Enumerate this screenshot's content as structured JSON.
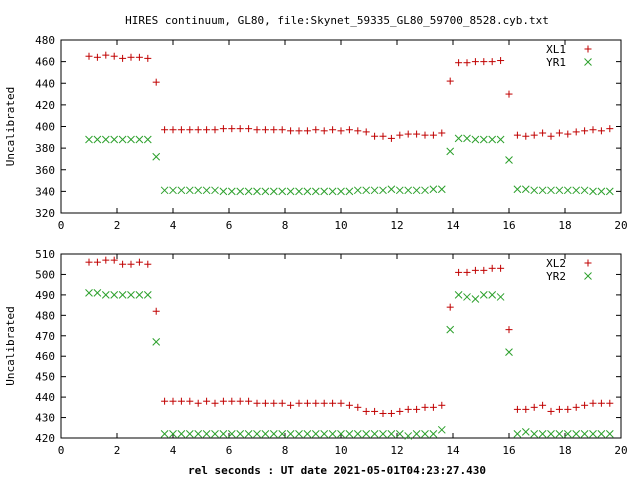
{
  "title": "HIRES continuum, GL80, file:Skynet_59335_GL80_59700_8528.cyb.txt",
  "xlabel": "rel seconds : UT date 2021-05-01T04:23:27.430",
  "colors": {
    "plus": "#c00000",
    "cross": "#2ca02c",
    "axis": "#000000"
  },
  "chart_data": [
    {
      "type": "scatter",
      "ylabel": "Uncalibrated",
      "xlim": [
        0,
        20
      ],
      "ylim": [
        320,
        480
      ],
      "xticks": [
        0,
        2,
        4,
        6,
        8,
        10,
        12,
        14,
        16,
        18,
        20
      ],
      "yticks": [
        320,
        340,
        360,
        380,
        400,
        420,
        440,
        460,
        480
      ],
      "legend_position": "top-right",
      "series": [
        {
          "name": "XL1",
          "marker": "plus",
          "color": "#c00000",
          "x": [
            1.0,
            1.3,
            1.6,
            1.9,
            2.2,
            2.5,
            2.8,
            3.1,
            3.4,
            3.7,
            4.0,
            4.3,
            4.6,
            4.9,
            5.2,
            5.5,
            5.8,
            6.1,
            6.4,
            6.7,
            7.0,
            7.3,
            7.6,
            7.9,
            8.2,
            8.5,
            8.8,
            9.1,
            9.4,
            9.7,
            10.0,
            10.3,
            10.6,
            10.9,
            11.2,
            11.5,
            11.8,
            12.1,
            12.4,
            12.7,
            13.0,
            13.3,
            13.6,
            13.9,
            14.2,
            14.5,
            14.8,
            15.1,
            15.4,
            15.7,
            16.0,
            16.3,
            16.6,
            16.9,
            17.2,
            17.5,
            17.8,
            18.1,
            18.4,
            18.7,
            19.0,
            19.3,
            19.6
          ],
          "y": [
            465,
            464,
            466,
            465,
            463,
            464,
            464,
            463,
            441,
            397,
            397,
            397,
            397,
            397,
            397,
            397,
            398,
            398,
            398,
            398,
            397,
            397,
            397,
            397,
            396,
            396,
            396,
            397,
            396,
            397,
            396,
            397,
            396,
            395,
            391,
            391,
            389,
            392,
            393,
            393,
            392,
            392,
            394,
            442,
            459,
            459,
            460,
            460,
            460,
            461,
            430,
            392,
            391,
            392,
            394,
            391,
            394,
            393,
            395,
            396,
            397,
            396,
            398
          ]
        },
        {
          "name": "YR1",
          "marker": "cross",
          "color": "#2ca02c",
          "x": [
            1.0,
            1.3,
            1.6,
            1.9,
            2.2,
            2.5,
            2.8,
            3.1,
            3.4,
            3.7,
            4.0,
            4.3,
            4.6,
            4.9,
            5.2,
            5.5,
            5.8,
            6.1,
            6.4,
            6.7,
            7.0,
            7.3,
            7.6,
            7.9,
            8.2,
            8.5,
            8.8,
            9.1,
            9.4,
            9.7,
            10.0,
            10.3,
            10.6,
            10.9,
            11.2,
            11.5,
            11.8,
            12.1,
            12.4,
            12.7,
            13.0,
            13.3,
            13.6,
            13.9,
            14.2,
            14.5,
            14.8,
            15.1,
            15.4,
            15.7,
            16.0,
            16.3,
            16.6,
            16.9,
            17.2,
            17.5,
            17.8,
            18.1,
            18.4,
            18.7,
            19.0,
            19.3,
            19.6
          ],
          "y": [
            388,
            388,
            388,
            388,
            388,
            388,
            388,
            388,
            372,
            341,
            341,
            341,
            341,
            341,
            341,
            341,
            340,
            340,
            340,
            340,
            340,
            340,
            340,
            340,
            340,
            340,
            340,
            340,
            340,
            340,
            340,
            340,
            341,
            341,
            341,
            341,
            342,
            341,
            341,
            341,
            341,
            342,
            342,
            377,
            389,
            389,
            388,
            388,
            388,
            388,
            369,
            342,
            342,
            341,
            341,
            341,
            341,
            341,
            341,
            341,
            340,
            340,
            340
          ]
        }
      ]
    },
    {
      "type": "scatter",
      "ylabel": "Uncalibrated",
      "xlim": [
        0,
        20
      ],
      "ylim": [
        420,
        510
      ],
      "xticks": [
        0,
        2,
        4,
        6,
        8,
        10,
        12,
        14,
        16,
        18,
        20
      ],
      "yticks": [
        420,
        430,
        440,
        450,
        460,
        470,
        480,
        490,
        500,
        510
      ],
      "legend_position": "top-right",
      "series": [
        {
          "name": "XL2",
          "marker": "plus",
          "color": "#c00000",
          "x": [
            1.0,
            1.3,
            1.6,
            1.9,
            2.2,
            2.5,
            2.8,
            3.1,
            3.4,
            3.7,
            4.0,
            4.3,
            4.6,
            4.9,
            5.2,
            5.5,
            5.8,
            6.1,
            6.4,
            6.7,
            7.0,
            7.3,
            7.6,
            7.9,
            8.2,
            8.5,
            8.8,
            9.1,
            9.4,
            9.7,
            10.0,
            10.3,
            10.6,
            10.9,
            11.2,
            11.5,
            11.8,
            12.1,
            12.4,
            12.7,
            13.0,
            13.3,
            13.6,
            13.9,
            14.2,
            14.5,
            14.8,
            15.1,
            15.4,
            15.7,
            16.0,
            16.3,
            16.6,
            16.9,
            17.2,
            17.5,
            17.8,
            18.1,
            18.4,
            18.7,
            19.0,
            19.3,
            19.6
          ],
          "y": [
            506,
            506,
            507,
            507,
            505,
            505,
            506,
            505,
            482,
            438,
            438,
            438,
            438,
            437,
            438,
            437,
            438,
            438,
            438,
            438,
            437,
            437,
            437,
            437,
            436,
            437,
            437,
            437,
            437,
            437,
            437,
            436,
            435,
            433,
            433,
            432,
            432,
            433,
            434,
            434,
            435,
            435,
            436,
            484,
            501,
            501,
            502,
            502,
            503,
            503,
            473,
            434,
            434,
            435,
            436,
            433,
            434,
            434,
            435,
            436,
            437,
            437,
            437
          ]
        },
        {
          "name": "YR2",
          "marker": "cross",
          "color": "#2ca02c",
          "x": [
            1.0,
            1.3,
            1.6,
            1.9,
            2.2,
            2.5,
            2.8,
            3.1,
            3.4,
            3.7,
            4.0,
            4.3,
            4.6,
            4.9,
            5.2,
            5.5,
            5.8,
            6.1,
            6.4,
            6.7,
            7.0,
            7.3,
            7.6,
            7.9,
            8.2,
            8.5,
            8.8,
            9.1,
            9.4,
            9.7,
            10.0,
            10.3,
            10.6,
            10.9,
            11.2,
            11.5,
            11.8,
            12.1,
            12.4,
            12.7,
            13.0,
            13.3,
            13.6,
            13.9,
            14.2,
            14.5,
            14.8,
            15.1,
            15.4,
            15.7,
            16.0,
            16.3,
            16.6,
            16.9,
            17.2,
            17.5,
            17.8,
            18.1,
            18.4,
            18.7,
            19.0,
            19.3,
            19.6
          ],
          "y": [
            491,
            491,
            490,
            490,
            490,
            490,
            490,
            490,
            467,
            422,
            422,
            422,
            422,
            422,
            422,
            422,
            422,
            422,
            422,
            422,
            422,
            422,
            422,
            422,
            422,
            422,
            422,
            422,
            422,
            422,
            422,
            422,
            422,
            422,
            422,
            422,
            422,
            422,
            421,
            422,
            422,
            422,
            424,
            473,
            490,
            489,
            488,
            490,
            490,
            489,
            462,
            422,
            423,
            422,
            422,
            422,
            422,
            422,
            422,
            422,
            422,
            422,
            422
          ]
        }
      ]
    }
  ]
}
